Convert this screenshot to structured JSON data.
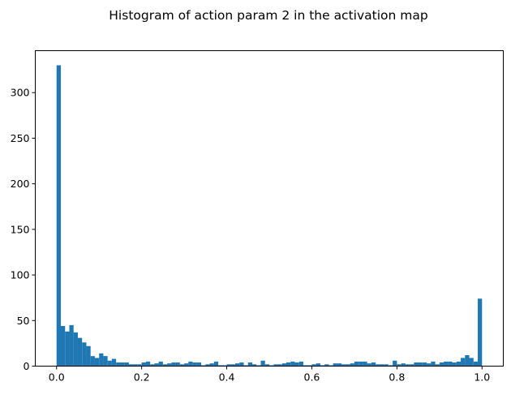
{
  "chart_data": {
    "type": "bar",
    "title": "Histogram of action param 2 in the activation map",
    "xlabel": "",
    "ylabel": "",
    "xlim": [
      -0.05,
      1.05
    ],
    "ylim": [
      0,
      346
    ],
    "x_ticks": [
      "0.0",
      "0.2",
      "0.4",
      "0.6",
      "0.8",
      "1.0"
    ],
    "y_ticks": [
      "0",
      "50",
      "100",
      "150",
      "200",
      "250",
      "300"
    ],
    "bin_range": [
      0,
      1
    ],
    "bin_count": 100,
    "grid": false,
    "color": "#1f77b4",
    "values": [
      330,
      44,
      38,
      45,
      37,
      31,
      26,
      22,
      11,
      9,
      14,
      11,
      6,
      8,
      4,
      4,
      4,
      2,
      2,
      2,
      4,
      5,
      2,
      3,
      5,
      2,
      3,
      4,
      4,
      2,
      3,
      5,
      4,
      4,
      1,
      2,
      3,
      5,
      1,
      1,
      2,
      2,
      3,
      4,
      1,
      4,
      2,
      1,
      6,
      2,
      1,
      2,
      2,
      3,
      4,
      5,
      4,
      5,
      1,
      1,
      2,
      3,
      1,
      2,
      1,
      3,
      3,
      2,
      2,
      3,
      5,
      5,
      5,
      3,
      4,
      2,
      2,
      2,
      1,
      6,
      2,
      3,
      2,
      2,
      4,
      4,
      4,
      3,
      5,
      2,
      4,
      5,
      5,
      4,
      5,
      9,
      12,
      9,
      5,
      74
    ]
  }
}
